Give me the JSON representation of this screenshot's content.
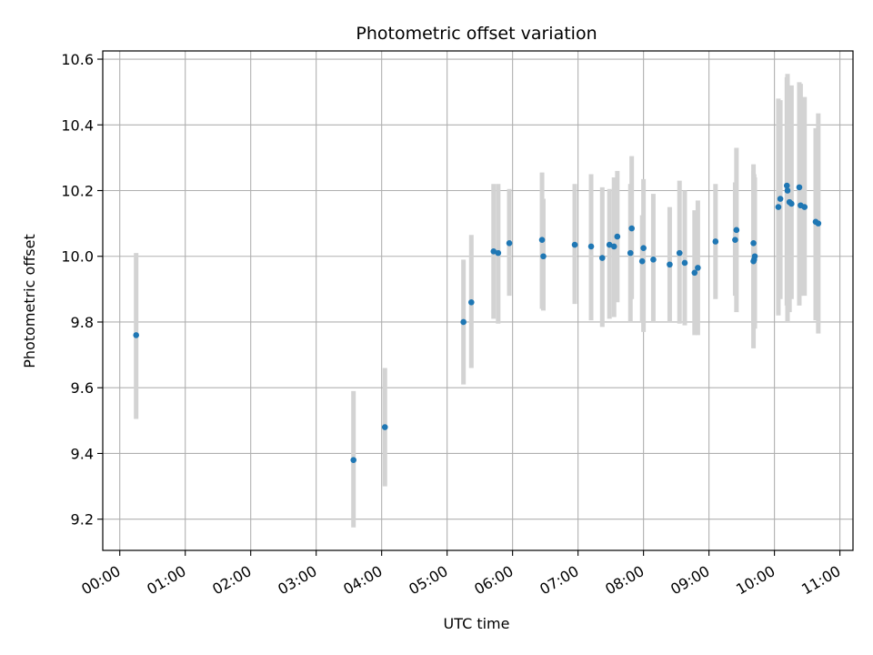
{
  "chart_data": {
    "type": "scatter",
    "title": "Photometric offset variation",
    "xlabel": "UTC time",
    "ylabel": "Photometric offset",
    "x_tick_labels": [
      "00:00",
      "01:00",
      "02:00",
      "03:00",
      "04:00",
      "05:00",
      "06:00",
      "07:00",
      "08:00",
      "09:00",
      "10:00",
      "11:00"
    ],
    "x_ticks_hours": [
      0,
      1,
      2,
      3,
      4,
      5,
      6,
      7,
      8,
      9,
      10,
      11
    ],
    "y_ticks": [
      9.2,
      9.4,
      9.6,
      9.8,
      10.0,
      10.2,
      10.4,
      10.6
    ],
    "y_tick_labels": [
      "9.2",
      "9.4",
      "9.6",
      "9.8",
      "10.0",
      "10.2",
      "10.4",
      "10.6"
    ],
    "xlim_hours": [
      -0.26,
      11.2
    ],
    "ylim": [
      9.105,
      10.625
    ],
    "grid": true,
    "colors": {
      "points": "#1f77b4",
      "errorbars": "#d3d3d3",
      "grid": "#b0b0b0"
    },
    "series": [
      {
        "x_hours": [
          0.25,
          3.57,
          4.05,
          5.25,
          5.37,
          5.71,
          5.78,
          5.95,
          6.45,
          6.47,
          6.95,
          7.2,
          7.37,
          7.48,
          7.55,
          7.6,
          7.82,
          7.8,
          8.0,
          7.98,
          8.15,
          8.4,
          8.55,
          8.63,
          8.78,
          8.83,
          9.1,
          9.4,
          9.42,
          9.68,
          9.7,
          9.69,
          9.68,
          10.06,
          10.09,
          10.19,
          10.2,
          10.23,
          10.26,
          10.38,
          10.4,
          10.46,
          10.63,
          10.67
        ],
        "y": [
          9.76,
          9.38,
          9.48,
          9.8,
          9.86,
          10.015,
          10.01,
          10.04,
          10.05,
          10.0,
          10.035,
          10.03,
          9.995,
          10.035,
          10.03,
          10.06,
          10.085,
          10.01,
          10.025,
          9.985,
          9.99,
          9.975,
          10.01,
          9.98,
          9.95,
          9.965,
          10.045,
          10.05,
          10.08,
          10.04,
          10.0,
          9.99,
          9.985,
          10.15,
          10.175,
          10.215,
          10.2,
          10.165,
          10.16,
          10.21,
          10.155,
          10.15,
          10.105,
          10.1
        ],
        "err_low": [
          9.505,
          9.175,
          9.3,
          9.61,
          9.66,
          9.81,
          9.795,
          9.88,
          9.84,
          9.835,
          9.855,
          9.805,
          9.785,
          9.81,
          9.815,
          9.86,
          9.87,
          9.8,
          9.77,
          9.8,
          9.8,
          9.8,
          9.795,
          9.79,
          9.76,
          9.76,
          9.87,
          9.88,
          9.83,
          9.72,
          9.78,
          9.805,
          9.79,
          9.82,
          9.87,
          9.85,
          9.8,
          9.83,
          9.87,
          9.85,
          9.88,
          9.88,
          9.805,
          9.765
        ],
        "err_high": [
          10.01,
          9.59,
          9.66,
          9.99,
          10.065,
          10.22,
          10.22,
          10.205,
          10.255,
          10.175,
          10.22,
          10.25,
          10.21,
          10.205,
          10.24,
          10.26,
          10.305,
          10.22,
          10.235,
          10.125,
          10.19,
          10.15,
          10.23,
          10.2,
          10.14,
          10.17,
          10.22,
          10.225,
          10.33,
          10.28,
          10.24,
          10.25,
          10.26,
          10.48,
          10.475,
          10.545,
          10.555,
          10.485,
          10.52,
          10.53,
          10.525,
          10.485,
          10.39,
          10.435
        ]
      }
    ]
  }
}
